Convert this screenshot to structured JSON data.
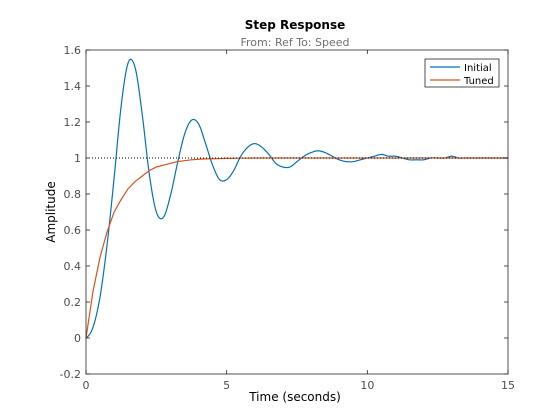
{
  "chart_data": {
    "type": "line",
    "title": "Step Response",
    "subtitle": "From: Ref  To: Speed",
    "xlabel": "Time (seconds)",
    "ylabel": "Amplitude",
    "xlim": [
      0,
      15
    ],
    "ylim": [
      -0.2,
      1.6
    ],
    "x_ticks": [
      0,
      5,
      10,
      15
    ],
    "y_ticks": [
      -0.2,
      0,
      0.2,
      0.4,
      0.6,
      0.8,
      1,
      1.2,
      1.4,
      1.6
    ],
    "x_tick_labels": [
      "0",
      "5",
      "10",
      "15"
    ],
    "y_tick_labels": [
      "-0.2",
      "0",
      "0.2",
      "0.4",
      "0.6",
      "0.8",
      "1",
      "1.2",
      "1.4",
      "1.6"
    ],
    "grid": false,
    "legend_position": "top-right",
    "reference_line": {
      "y": 1,
      "style": "dotted",
      "color": "#000000"
    },
    "series": [
      {
        "name": "Initial",
        "color": "#0072bd",
        "x": [
          0,
          0.25,
          0.5,
          0.75,
          1.0,
          1.25,
          1.5,
          1.75,
          2.0,
          2.25,
          2.5,
          2.75,
          3.0,
          3.25,
          3.5,
          3.75,
          4.0,
          4.25,
          4.5,
          4.75,
          5.0,
          5.25,
          5.5,
          5.75,
          6.0,
          6.25,
          6.5,
          6.75,
          7.0,
          7.25,
          7.5,
          7.75,
          8.0,
          8.25,
          8.5,
          8.75,
          9.0,
          9.25,
          9.5,
          9.75,
          10.0,
          10.25,
          10.5,
          10.75,
          11.0,
          11.25,
          11.5,
          11.75,
          12.0,
          12.25,
          12.5,
          12.75,
          13.0,
          13.25,
          13.5,
          13.75,
          14.0,
          14.25,
          14.5,
          14.75,
          15.0
        ],
        "y": [
          0,
          0.06,
          0.23,
          0.52,
          0.89,
          1.29,
          1.53,
          1.5,
          1.24,
          0.91,
          0.7,
          0.67,
          0.79,
          0.97,
          1.13,
          1.21,
          1.19,
          1.08,
          0.96,
          0.88,
          0.88,
          0.93,
          1.01,
          1.06,
          1.08,
          1.06,
          1.02,
          0.97,
          0.95,
          0.95,
          0.98,
          1.01,
          1.03,
          1.04,
          1.03,
          1.01,
          0.99,
          0.98,
          0.98,
          0.99,
          1.0,
          1.01,
          1.02,
          1.01,
          1.01,
          1.0,
          0.99,
          0.99,
          0.99,
          1.0,
          1.0,
          1.0,
          1.01,
          1.0,
          1.0,
          1.0,
          1.0,
          1.0,
          1.0,
          1.0,
          1.0
        ]
      },
      {
        "name": "Tuned",
        "color": "#d95319",
        "x": [
          0,
          0.25,
          0.5,
          0.75,
          1.0,
          1.25,
          1.5,
          1.75,
          2.0,
          2.25,
          2.5,
          2.75,
          3.0,
          3.25,
          3.5,
          3.75,
          4.0,
          4.25,
          4.5,
          4.75,
          5.0,
          5.5,
          6.0,
          6.5,
          7.0,
          8.0,
          9.0,
          10.0,
          11.0,
          12.0,
          13.0,
          14.0,
          15.0
        ],
        "y": [
          0,
          0.26,
          0.45,
          0.59,
          0.7,
          0.77,
          0.83,
          0.87,
          0.9,
          0.93,
          0.95,
          0.96,
          0.97,
          0.98,
          0.985,
          0.99,
          0.993,
          0.995,
          0.996,
          0.997,
          0.998,
          0.999,
          1.0,
          1.0,
          1.0,
          1.0,
          1.0,
          1.0,
          1.0,
          1.0,
          1.0,
          1.0,
          1.0
        ]
      }
    ]
  }
}
